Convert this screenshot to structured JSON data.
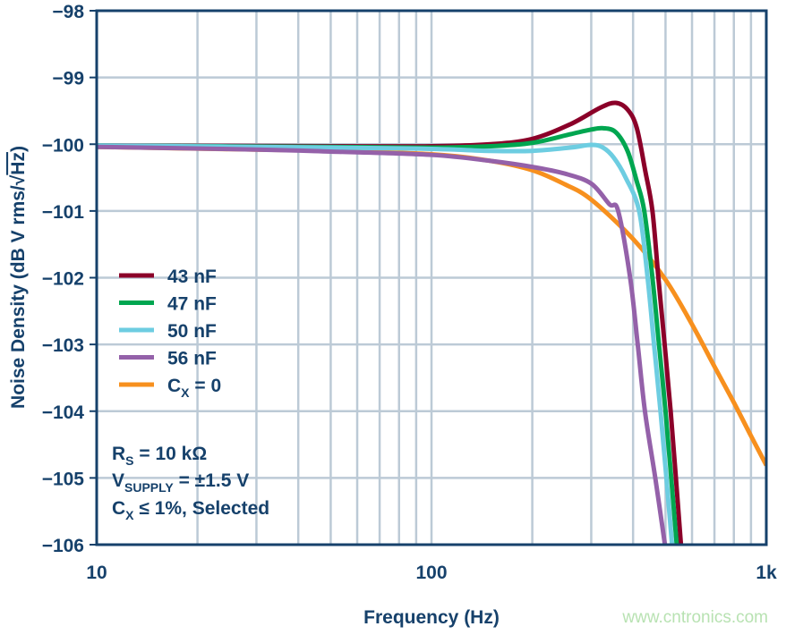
{
  "chart_data": {
    "type": "line",
    "title": "",
    "xlabel": "Frequency (Hz)",
    "ylabel_parts": {
      "main": "Noise Density (dB V rms/",
      "root": "√",
      "hz": "Hz",
      "close": ")"
    },
    "xscale": "log",
    "xlim": [
      10,
      1000
    ],
    "ylim": [
      -106,
      -98
    ],
    "grid": true,
    "x_tick_labels": [
      "10",
      "100",
      "1k"
    ],
    "y_ticks": [
      -98,
      -99,
      -100,
      -101,
      -102,
      -103,
      -104,
      -105,
      -106
    ],
    "y_tick_labels": [
      "−98",
      "−99",
      "−100",
      "−101",
      "−102",
      "−103",
      "−104",
      "−105",
      "−106"
    ],
    "legend_placement": "center-left",
    "series": [
      {
        "name": "43 nF",
        "color": "#8b0029",
        "points": [
          [
            10,
            -100.02
          ],
          [
            50,
            -100.03
          ],
          [
            100,
            -100.03
          ],
          [
            150,
            -100.0
          ],
          [
            200,
            -99.92
          ],
          [
            260,
            -99.7
          ],
          [
            320,
            -99.45
          ],
          [
            355,
            -99.38
          ],
          [
            385,
            -99.48
          ],
          [
            410,
            -99.75
          ],
          [
            435,
            -100.4
          ],
          [
            457,
            -101.0
          ],
          [
            476,
            -102.0
          ],
          [
            497,
            -103.0
          ],
          [
            518,
            -104.0
          ],
          [
            537,
            -105.0
          ],
          [
            556,
            -106.0
          ]
        ]
      },
      {
        "name": "47 nF",
        "color": "#00a650",
        "points": [
          [
            10,
            -100.02
          ],
          [
            50,
            -100.04
          ],
          [
            100,
            -100.05
          ],
          [
            150,
            -100.03
          ],
          [
            200,
            -99.98
          ],
          [
            260,
            -99.85
          ],
          [
            300,
            -99.78
          ],
          [
            326,
            -99.76
          ],
          [
            355,
            -99.82
          ],
          [
            385,
            -100.1
          ],
          [
            410,
            -100.55
          ],
          [
            432,
            -101.0
          ],
          [
            457,
            -102.0
          ],
          [
            478,
            -103.0
          ],
          [
            500,
            -104.0
          ],
          [
            520,
            -105.0
          ],
          [
            540,
            -106.0
          ]
        ]
      },
      {
        "name": "50 nF",
        "color": "#6dcde1",
        "points": [
          [
            10,
            -100.02
          ],
          [
            50,
            -100.05
          ],
          [
            100,
            -100.07
          ],
          [
            150,
            -100.1
          ],
          [
            200,
            -100.1
          ],
          [
            260,
            -100.05
          ],
          [
            300,
            -100.01
          ],
          [
            325,
            -100.05
          ],
          [
            350,
            -100.2
          ],
          [
            380,
            -100.5
          ],
          [
            417,
            -101.0
          ],
          [
            442,
            -102.0
          ],
          [
            462,
            -103.0
          ],
          [
            483,
            -104.0
          ],
          [
            503,
            -105.0
          ],
          [
            523,
            -106.0
          ]
        ]
      },
      {
        "name": "56 nF",
        "color": "#9461a9",
        "points": [
          [
            10,
            -100.04
          ],
          [
            30,
            -100.08
          ],
          [
            50,
            -100.11
          ],
          [
            100,
            -100.16
          ],
          [
            150,
            -100.25
          ],
          [
            200,
            -100.34
          ],
          [
            250,
            -100.44
          ],
          [
            300,
            -100.59
          ],
          [
            340,
            -100.9
          ],
          [
            361,
            -101.0
          ],
          [
            392,
            -102.0
          ],
          [
            413,
            -103.0
          ],
          [
            434,
            -104.0
          ],
          [
            466,
            -105.0
          ],
          [
            498,
            -106.0
          ]
        ]
      },
      {
        "name": "C",
        "name_sub": "X",
        "name_rest": " = 0",
        "color": "#f7901e",
        "points": [
          [
            10,
            -100.04
          ],
          [
            30,
            -100.08
          ],
          [
            50,
            -100.1
          ],
          [
            100,
            -100.15
          ],
          [
            150,
            -100.25
          ],
          [
            200,
            -100.39
          ],
          [
            250,
            -100.6
          ],
          [
            300,
            -100.83
          ],
          [
            400,
            -101.42
          ],
          [
            500,
            -102.03
          ],
          [
            600,
            -102.7
          ],
          [
            700,
            -103.33
          ],
          [
            800,
            -103.87
          ],
          [
            900,
            -104.37
          ],
          [
            1000,
            -104.81
          ]
        ]
      }
    ],
    "annotations": [
      {
        "main": "R",
        "sub": "S",
        "rest": " = 10 kΩ"
      },
      {
        "main": "V",
        "sub": "SUPPLY",
        "rest": " = ±1.5 V"
      },
      {
        "main": "C",
        "sub": "X",
        "rest": " ≤ 1%, Selected"
      }
    ]
  },
  "watermark": "www.cntronics.com",
  "colors": {
    "axis": "#16416b",
    "grid": "#bccad6",
    "watermark": "#b8e2b2"
  }
}
